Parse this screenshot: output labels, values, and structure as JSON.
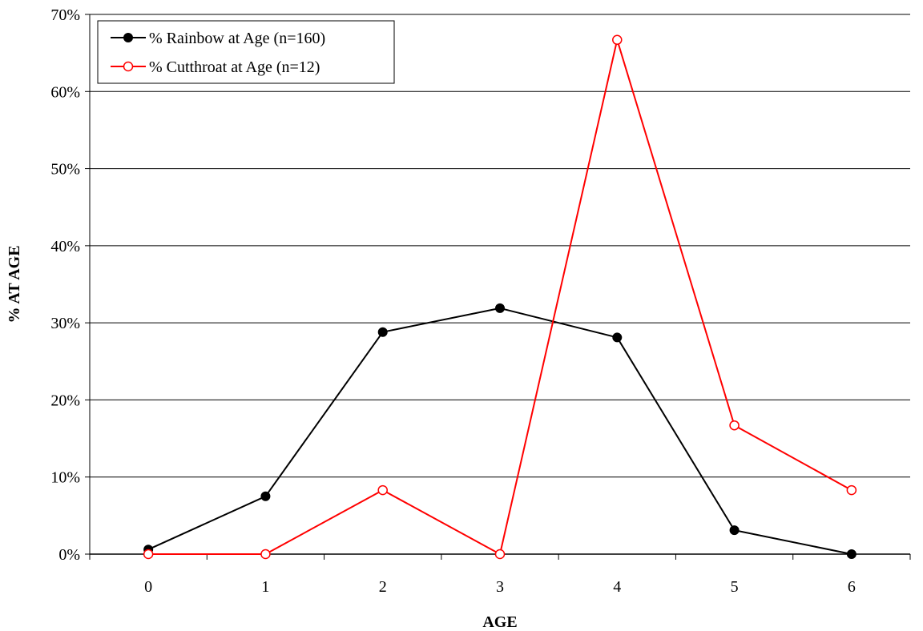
{
  "chart_data": {
    "type": "line",
    "title": "",
    "xlabel": "AGE",
    "ylabel": "% AT AGE",
    "x": [
      0,
      1,
      2,
      3,
      4,
      5,
      6
    ],
    "x_tick_labels": [
      "0",
      "1",
      "2",
      "3",
      "4",
      "5",
      "6"
    ],
    "y_tick_labels": [
      "0%",
      "10%",
      "20%",
      "30%",
      "40%",
      "50%",
      "60%",
      "70%"
    ],
    "ylim": [
      0,
      70
    ],
    "grid": "horizontal",
    "legend_position": "top-left",
    "series": [
      {
        "name": "% Rainbow at Age (n=160)",
        "color": "#000000",
        "marker": "filled-circle",
        "values": [
          0.6,
          7.5,
          28.8,
          31.9,
          28.1,
          3.1,
          0.0
        ]
      },
      {
        "name": "% Cutthroat at Age (n=12)",
        "color": "#ff0000",
        "marker": "open-circle",
        "values": [
          0.0,
          0.0,
          8.3,
          0.0,
          66.7,
          16.7,
          8.3
        ]
      }
    ]
  }
}
